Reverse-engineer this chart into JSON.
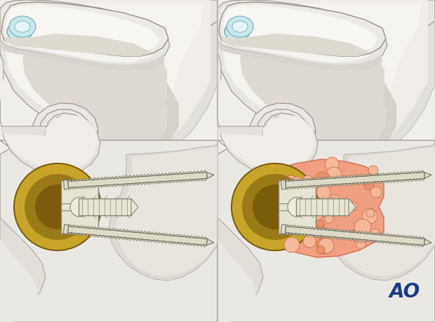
{
  "bg_color": "#f8f7f5",
  "ao_text": "AO",
  "ao_color": "#1a3a8a",
  "ao_fontsize": 20,
  "fig_width": 6.2,
  "fig_height": 4.59,
  "dpi": 100,
  "gold_outer": "#c8a428",
  "gold_inner": "#9a7a18",
  "implant_body": "#e8e4d4",
  "implant_edge": "#888878",
  "screw_fill": "#dddac8",
  "screw_edge": "#666655",
  "graft_fill": "#f0a080",
  "graft_edge": "#d07055",
  "skin_light": "#f2f0ec",
  "skin_mid": "#e0ddd5",
  "skin_dark": "#c8c5bc",
  "skin_edge": "#999088",
  "teal_fill": "#c8e8ec",
  "teal_edge": "#8ab8c0"
}
